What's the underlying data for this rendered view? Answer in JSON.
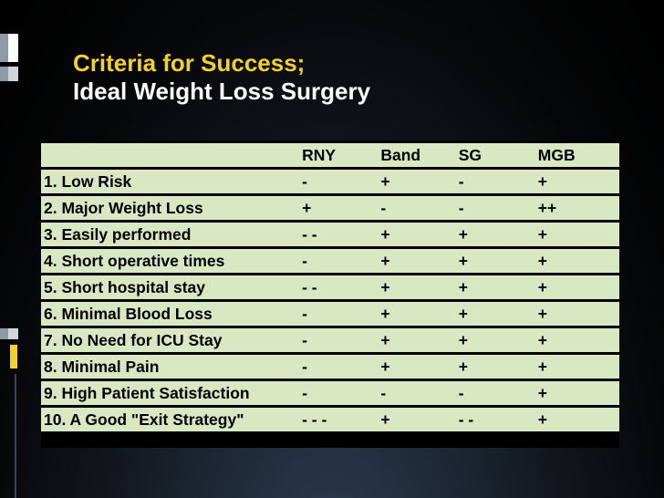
{
  "slide": {
    "title_line1": "Criteria for Success;",
    "title_line2": "Ideal Weight Loss Surgery"
  },
  "table": {
    "headers": [
      "",
      "RNY",
      "Band",
      "SG",
      "MGB"
    ],
    "rows": [
      [
        "1. Low Risk",
        "-",
        "+",
        "-",
        "+"
      ],
      [
        "2. Major Weight Loss",
        "+",
        "-",
        "-",
        "++"
      ],
      [
        "3. Easily performed",
        "- -",
        "+",
        "+",
        "+"
      ],
      [
        "4. Short operative times",
        "-",
        "+",
        "+",
        "+"
      ],
      [
        "5. Short hospital stay",
        "- -",
        "+",
        "+",
        "+"
      ],
      [
        "6. Minimal Blood Loss",
        "-",
        "+",
        "+",
        "+"
      ],
      [
        "7. No Need for ICU Stay",
        "-",
        "+",
        "+",
        "+"
      ],
      [
        "8. Minimal Pain",
        "-",
        "+",
        "+",
        "+"
      ],
      [
        "9. High Patient Satisfaction",
        "-",
        "-",
        "-",
        "+"
      ],
      [
        "10. A Good \"Exit Strategy\"",
        "- - -",
        "+",
        "- -",
        "+"
      ]
    ]
  },
  "colors": {
    "title_accent": "#f2d12c",
    "row_fill": "#d9e8c2"
  }
}
